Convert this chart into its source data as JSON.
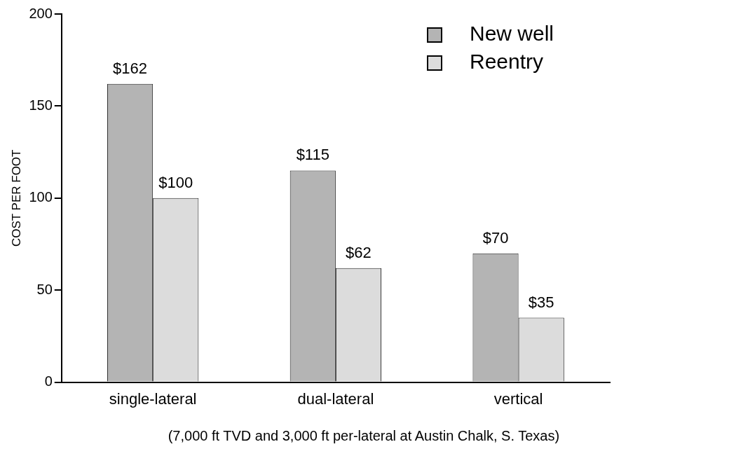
{
  "chart_data": {
    "type": "bar",
    "categories": [
      "single-lateral",
      "dual-lateral",
      "vertical"
    ],
    "series": [
      {
        "name": "New well",
        "color": "#b4b4b4",
        "values": [
          162,
          115,
          70
        ],
        "value_labels": [
          "$162",
          "$115",
          "$70"
        ]
      },
      {
        "name": "Reentry",
        "color": "#dcdcdc",
        "values": [
          100,
          62,
          35
        ],
        "value_labels": [
          "$100",
          "$62",
          "$35"
        ]
      }
    ],
    "ylabel": "COST PER FOOT",
    "ylim": [
      0,
      200
    ],
    "yticks": [
      0,
      50,
      100,
      150,
      200
    ],
    "legend": "top right",
    "annotations": [
      "(7,000 ft TVD and 3,000 ft per-lateral at Austin Chalk, S. Texas)"
    ]
  }
}
